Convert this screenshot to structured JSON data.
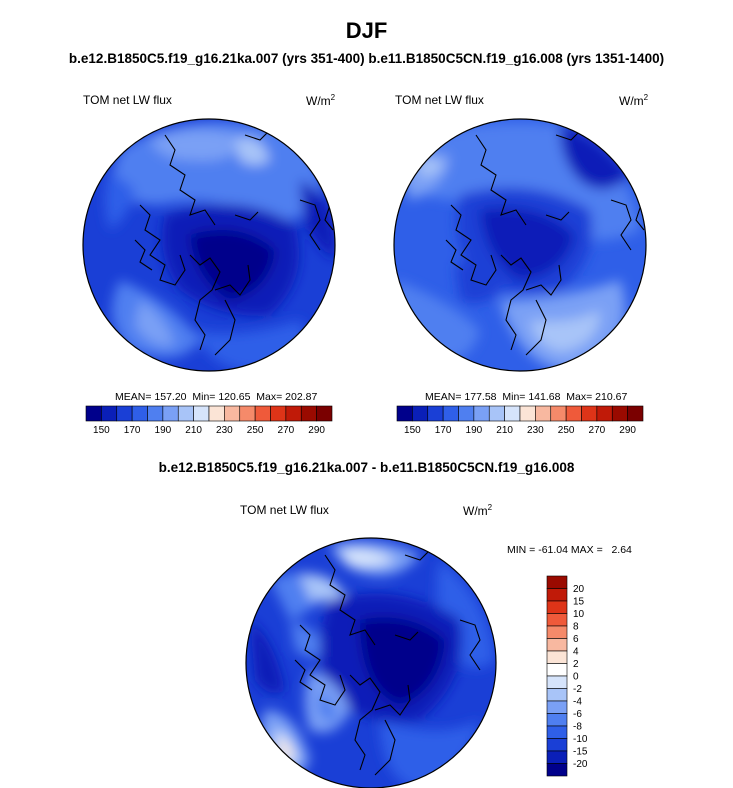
{
  "figure": {
    "title": "DJF",
    "subtitle_top": "b.e12.B1850C5.f19_g16.21ka.007 (yrs 351-400) b.e11.B1850C5CN.f19_g16.008 (yrs 1351-1400)",
    "subtitle_bottom": "b.e12.B1850C5.f19_g16.21ka.007 - b.e11.B1850C5CN.f19_g16.008"
  },
  "chart_data": [
    {
      "type": "heatmap",
      "projection": "north-polar-stereographic",
      "variable": "TOM net LW flux",
      "units": "W/m",
      "units_exponent": "2",
      "mean_text": "MEAN= 157.20",
      "min_text": "Min= 120.65",
      "max_text": "Max= 202.87",
      "mean": 157.2,
      "min": 120.65,
      "max": 202.87,
      "colorbar": {
        "orientation": "horizontal",
        "levels": [
          150,
          160,
          170,
          180,
          190,
          200,
          210,
          220,
          230,
          240,
          250,
          260,
          270,
          280,
          290
        ],
        "tick_labels": [
          "150",
          "170",
          "190",
          "210",
          "230",
          "250",
          "270",
          "290"
        ],
        "colors": [
          "#00008b",
          "#0a1fb8",
          "#1a3fd6",
          "#2f5fe8",
          "#4f7ff0",
          "#7aa0f5",
          "#a8c4f8",
          "#d6e4fb",
          "#fbe4d6",
          "#f8b8a0",
          "#f58a6a",
          "#ef5a3a",
          "#de3418",
          "#c01a08",
          "#9a0a00",
          "#7a0000"
        ]
      }
    },
    {
      "type": "heatmap",
      "projection": "north-polar-stereographic",
      "variable": "TOM net LW flux",
      "units": "W/m",
      "units_exponent": "2",
      "mean_text": "MEAN= 177.58",
      "min_text": "Min= 141.68",
      "max_text": "Max= 210.67",
      "mean": 177.58,
      "min": 141.68,
      "max": 210.67,
      "colorbar": {
        "orientation": "horizontal",
        "levels": [
          150,
          160,
          170,
          180,
          190,
          200,
          210,
          220,
          230,
          240,
          250,
          260,
          270,
          280,
          290
        ],
        "tick_labels": [
          "150",
          "170",
          "190",
          "210",
          "230",
          "250",
          "270",
          "290"
        ],
        "colors": [
          "#00008b",
          "#0a1fb8",
          "#1a3fd6",
          "#2f5fe8",
          "#4f7ff0",
          "#7aa0f5",
          "#a8c4f8",
          "#d6e4fb",
          "#fbe4d6",
          "#f8b8a0",
          "#f58a6a",
          "#ef5a3a",
          "#de3418",
          "#c01a08",
          "#9a0a00",
          "#7a0000"
        ]
      }
    },
    {
      "type": "heatmap",
      "projection": "north-polar-stereographic",
      "variable": "TOM net LW flux",
      "units": "W/m",
      "units_exponent": "2",
      "minmax_text": "MIN = -61.04 MAX =   2.64",
      "min": -61.04,
      "max": 2.64,
      "colorbar": {
        "orientation": "vertical",
        "levels": [
          -20,
          -15,
          -10,
          -8,
          -6,
          -4,
          -2,
          0,
          2,
          4,
          6,
          8,
          10,
          15,
          20
        ],
        "tick_labels": [
          "20",
          "15",
          "10",
          "8",
          "6",
          "4",
          "2",
          "0",
          "-2",
          "-4",
          "-6",
          "-8",
          "-10",
          "-15",
          "-20"
        ],
        "colors_top_to_bottom": [
          "#9a0a00",
          "#c01a08",
          "#de3418",
          "#ef5a3a",
          "#f58a6a",
          "#f8b8a0",
          "#fbe4d6",
          "#ffffff",
          "#d6e4fb",
          "#a8c4f8",
          "#7aa0f5",
          "#4f7ff0",
          "#2f5fe8",
          "#1a3fd6",
          "#0a1fb8",
          "#00008b"
        ]
      }
    }
  ]
}
